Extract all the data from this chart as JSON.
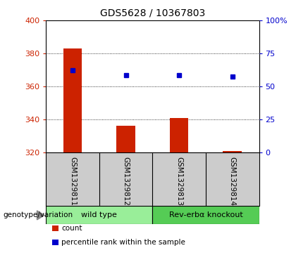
{
  "title": "GDS5628 / 10367803",
  "samples": [
    "GSM1329811",
    "GSM1329812",
    "GSM1329813",
    "GSM1329814"
  ],
  "bar_values": [
    383,
    336,
    341,
    321
  ],
  "bar_bottom": 320,
  "bar_color": "#cc2200",
  "dot_values": [
    370,
    367,
    367,
    366
  ],
  "dot_color": "#0000cc",
  "left_ylim": [
    320,
    400
  ],
  "left_yticks": [
    320,
    340,
    360,
    380,
    400
  ],
  "right_ylim": [
    0,
    100
  ],
  "right_yticks": [
    0,
    25,
    50,
    75,
    100
  ],
  "right_yticklabels": [
    "0",
    "25",
    "50",
    "75",
    "100%"
  ],
  "grid_values": [
    340,
    360,
    380
  ],
  "groups": [
    {
      "label": "wild type",
      "indices": [
        0,
        1
      ],
      "color": "#99ee99"
    },
    {
      "label": "Rev-erbα knockout",
      "indices": [
        2,
        3
      ],
      "color": "#55cc55"
    }
  ],
  "genotype_label": "genotype/variation",
  "legend_items": [
    {
      "label": "count",
      "color": "#cc2200"
    },
    {
      "label": "percentile rank within the sample",
      "color": "#0000cc"
    }
  ],
  "sample_bg": "#cccccc",
  "title_fontsize": 10,
  "axis_label_color_left": "#cc2200",
  "axis_label_color_right": "#0000cc",
  "bar_width": 0.35,
  "dot_markersize": 5
}
